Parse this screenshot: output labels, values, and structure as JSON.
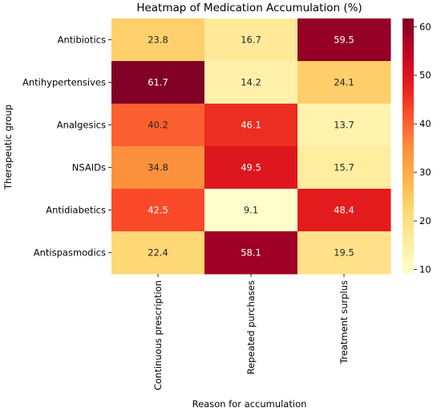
{
  "chart_data": {
    "type": "heatmap",
    "title": "Heatmap of Medication Accumulation (%)",
    "xlabel": "Reason for accumulation",
    "ylabel": "Therapeutic group",
    "columns": [
      "Continuous prescription",
      "Repeated purchases",
      "Treatment surplus"
    ],
    "rows": [
      "Antibiotics",
      "Antihypertensives",
      "Analgesics",
      "NSAIDs",
      "Antidiabetics",
      "Antispasmodics"
    ],
    "values": [
      [
        23.8,
        16.7,
        59.5
      ],
      [
        61.7,
        14.2,
        24.1
      ],
      [
        40.2,
        46.1,
        13.7
      ],
      [
        34.8,
        49.5,
        15.7
      ],
      [
        42.5,
        9.1,
        48.4
      ],
      [
        22.4,
        58.1,
        19.5
      ]
    ],
    "value_labels": [
      [
        "23.8",
        "16.7",
        "59.5"
      ],
      [
        "61.7",
        "14.2",
        "24.1"
      ],
      [
        "40.2",
        "46.1",
        "13.7"
      ],
      [
        "34.8",
        "49.5",
        "15.7"
      ],
      [
        "42.5",
        "9.1",
        "48.4"
      ],
      [
        "22.4",
        "58.1",
        "19.5"
      ]
    ],
    "colormap": "YlOrRd",
    "color_range": [
      9.1,
      61.7
    ],
    "colorbar_ticks": [
      "10",
      "20",
      "30",
      "40",
      "50",
      "60"
    ],
    "colorbar_tick_values": [
      10,
      20,
      30,
      40,
      50,
      60
    ]
  }
}
